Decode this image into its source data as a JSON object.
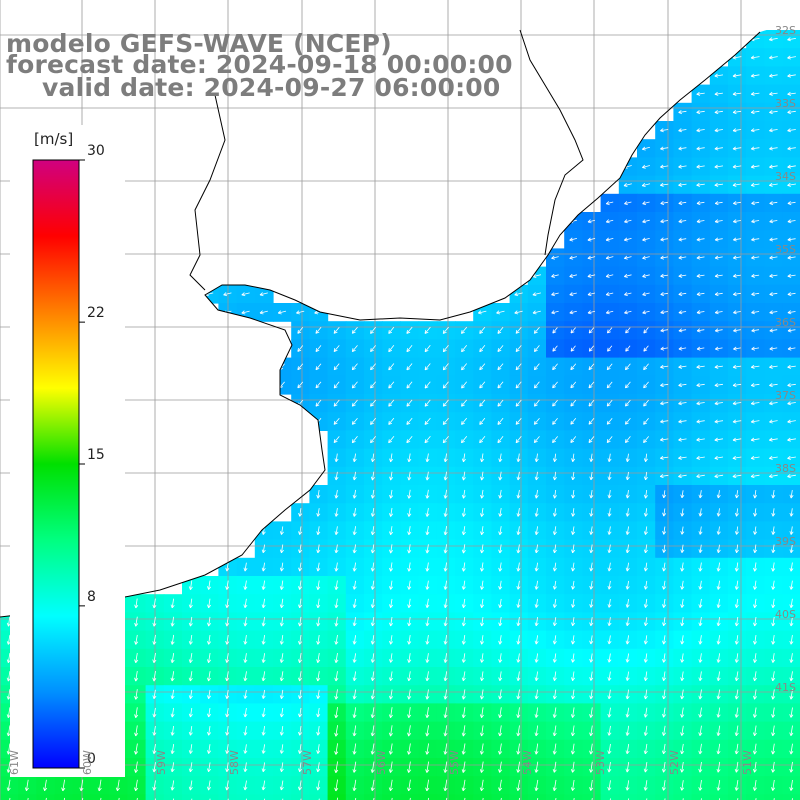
{
  "title": {
    "model": "modelo GEFS-WAVE (NCEP)",
    "forecast": "forecast date: 2024-09-18 00:00:00",
    "valid": "valid date: 2024-09-27 06:00:00"
  },
  "colorbar": {
    "units": "[m/s]",
    "ticks": [
      {
        "label": "30",
        "value": 30
      },
      {
        "label": "22",
        "value": 22
      },
      {
        "label": "15",
        "value": 15
      },
      {
        "label": "8",
        "value": 8
      },
      {
        "label": "0",
        "value": 0
      }
    ],
    "range": [
      0,
      30
    ],
    "colors": [
      "#0000ff",
      "#0090ff",
      "#00ffff",
      "#00ff80",
      "#00e000",
      "#ffff00",
      "#ff8000",
      "#ff0000",
      "#d00080"
    ]
  },
  "lat_labels": [
    "32S",
    "33S",
    "34S",
    "35S",
    "36S",
    "37S",
    "38S",
    "39S",
    "40S",
    "41S"
  ],
  "lon_labels": [
    "61W",
    "60W",
    "59W",
    "58W",
    "57W",
    "56W",
    "55W",
    "54W",
    "53W",
    "52W",
    "51W"
  ],
  "map": {
    "region": "Rio de la Plata / Uruguay / Argentina coast",
    "land_color": "#ffffff",
    "grid_color": "#9a9a9a",
    "arrow_color": "#ffffff"
  }
}
